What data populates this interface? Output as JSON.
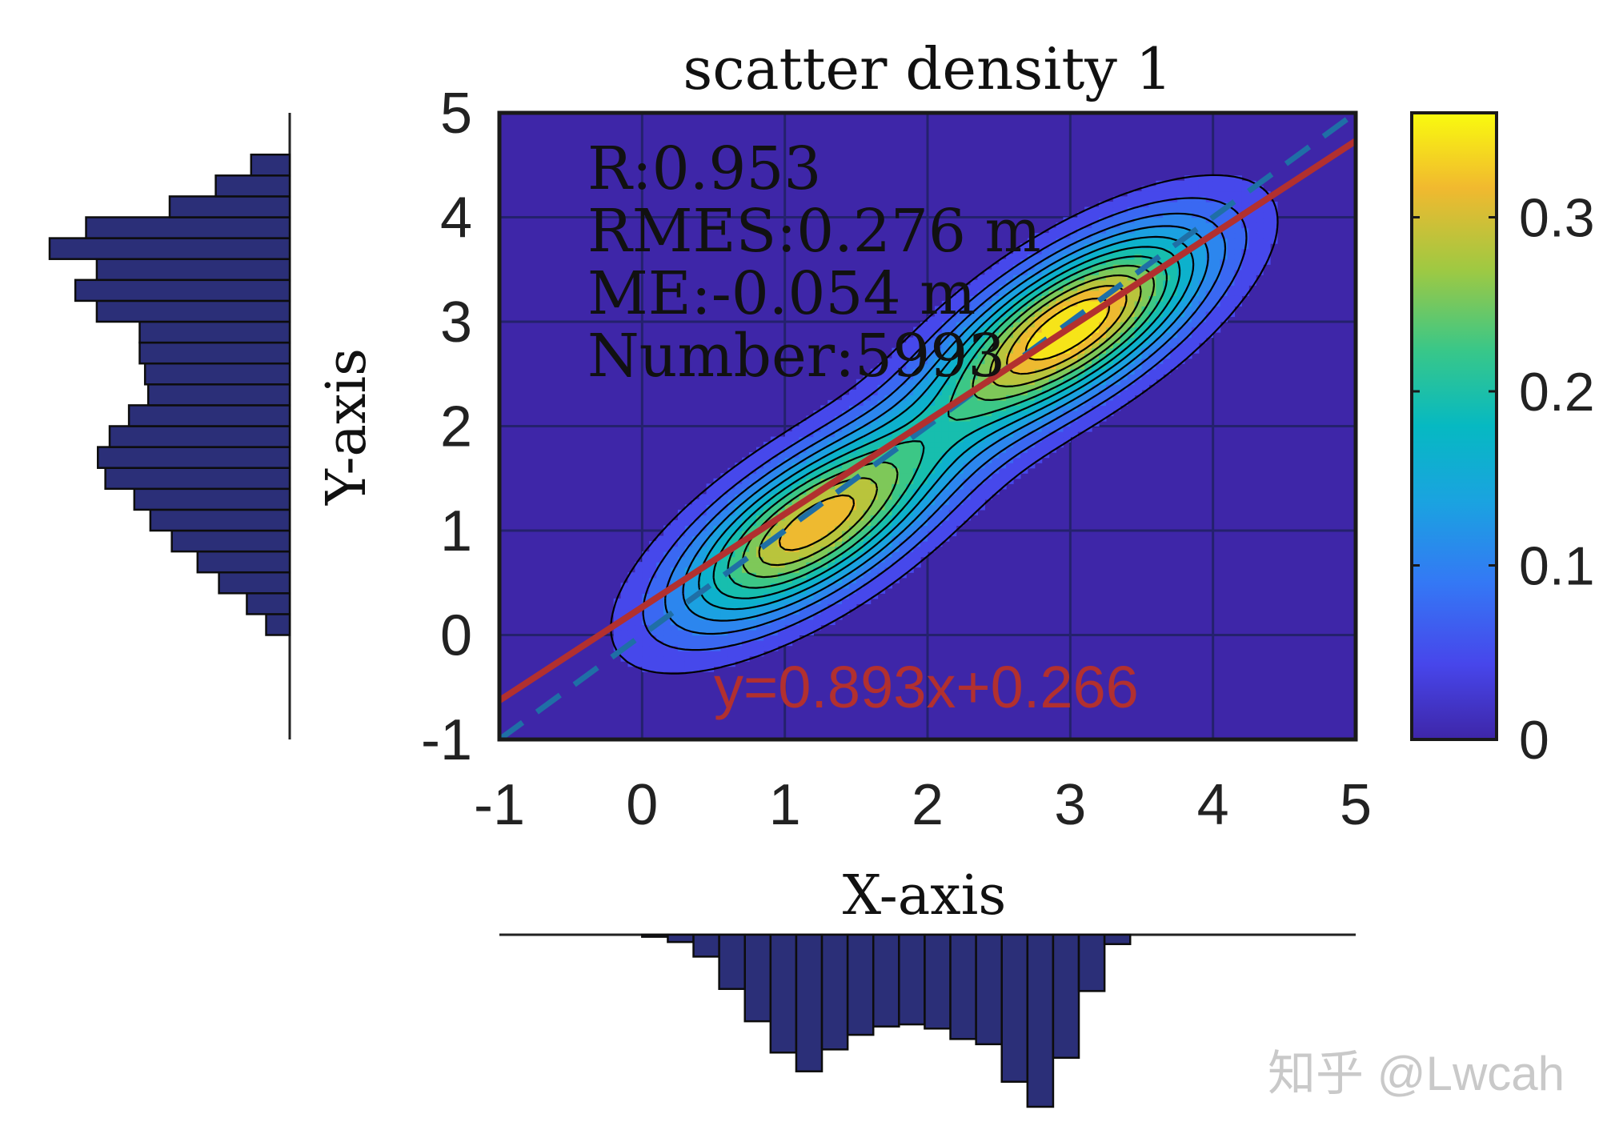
{
  "chart_data": {
    "type": "heatmap",
    "title": "scatter density 1",
    "xlabel": "X-axis",
    "ylabel": "Y-axis",
    "xlim": [
      -1,
      5
    ],
    "ylim": [
      -1,
      5
    ],
    "x_ticks": [
      "-1",
      "0",
      "1",
      "2",
      "3",
      "4",
      "5"
    ],
    "y_ticks": [
      "-1",
      "0",
      "1",
      "2",
      "3",
      "4",
      "5"
    ],
    "grid": true,
    "background_color": "#3e26a8",
    "density_peaks": [
      {
        "x": 1.2,
        "y": 1.05,
        "value": 0.32
      },
      {
        "x": 3.0,
        "y": 2.95,
        "value": 0.36
      }
    ],
    "contour_levels": [
      0.03,
      0.06,
      0.09,
      0.12,
      0.15,
      0.18,
      0.21,
      0.24,
      0.27,
      0.3,
      0.33
    ],
    "stats": [
      "R:0.953",
      "RMES:0.276 m",
      "ME:-0.054 m",
      "Number:5993"
    ],
    "fit_line": {
      "label": "y=0.893x+0.266",
      "slope": 0.893,
      "intercept": 0.266,
      "color": "#b2302f"
    },
    "identity_line": {
      "slope": 1,
      "intercept": 0,
      "color": "#1f6fa6",
      "style": "dashed"
    },
    "colorbar": {
      "min": 0,
      "max": 0.36,
      "ticks": [
        "0",
        "0.1",
        "0.2",
        "0.3"
      ],
      "tick_values": [
        0,
        0.1,
        0.2,
        0.3
      ],
      "colormap": "parula"
    },
    "x_histogram": {
      "bin_width": 0.18,
      "bin_start": 0,
      "counts": [
        2,
        7,
        21,
        52,
        83,
        113,
        131,
        110,
        96,
        88,
        86,
        90,
        100,
        105,
        141,
        165,
        118,
        54,
        9
      ]
    },
    "y_histogram": {
      "bin_width": 0.2,
      "bin_start": 0,
      "counts": [
        22,
        40,
        66,
        86,
        110,
        130,
        145,
        172,
        179,
        168,
        150,
        132,
        135,
        140,
        140,
        180,
        200,
        180,
        224,
        190,
        112,
        69,
        36
      ]
    },
    "bar_color": "#2b2f78"
  },
  "watermark": "知乎 @Lwcah"
}
